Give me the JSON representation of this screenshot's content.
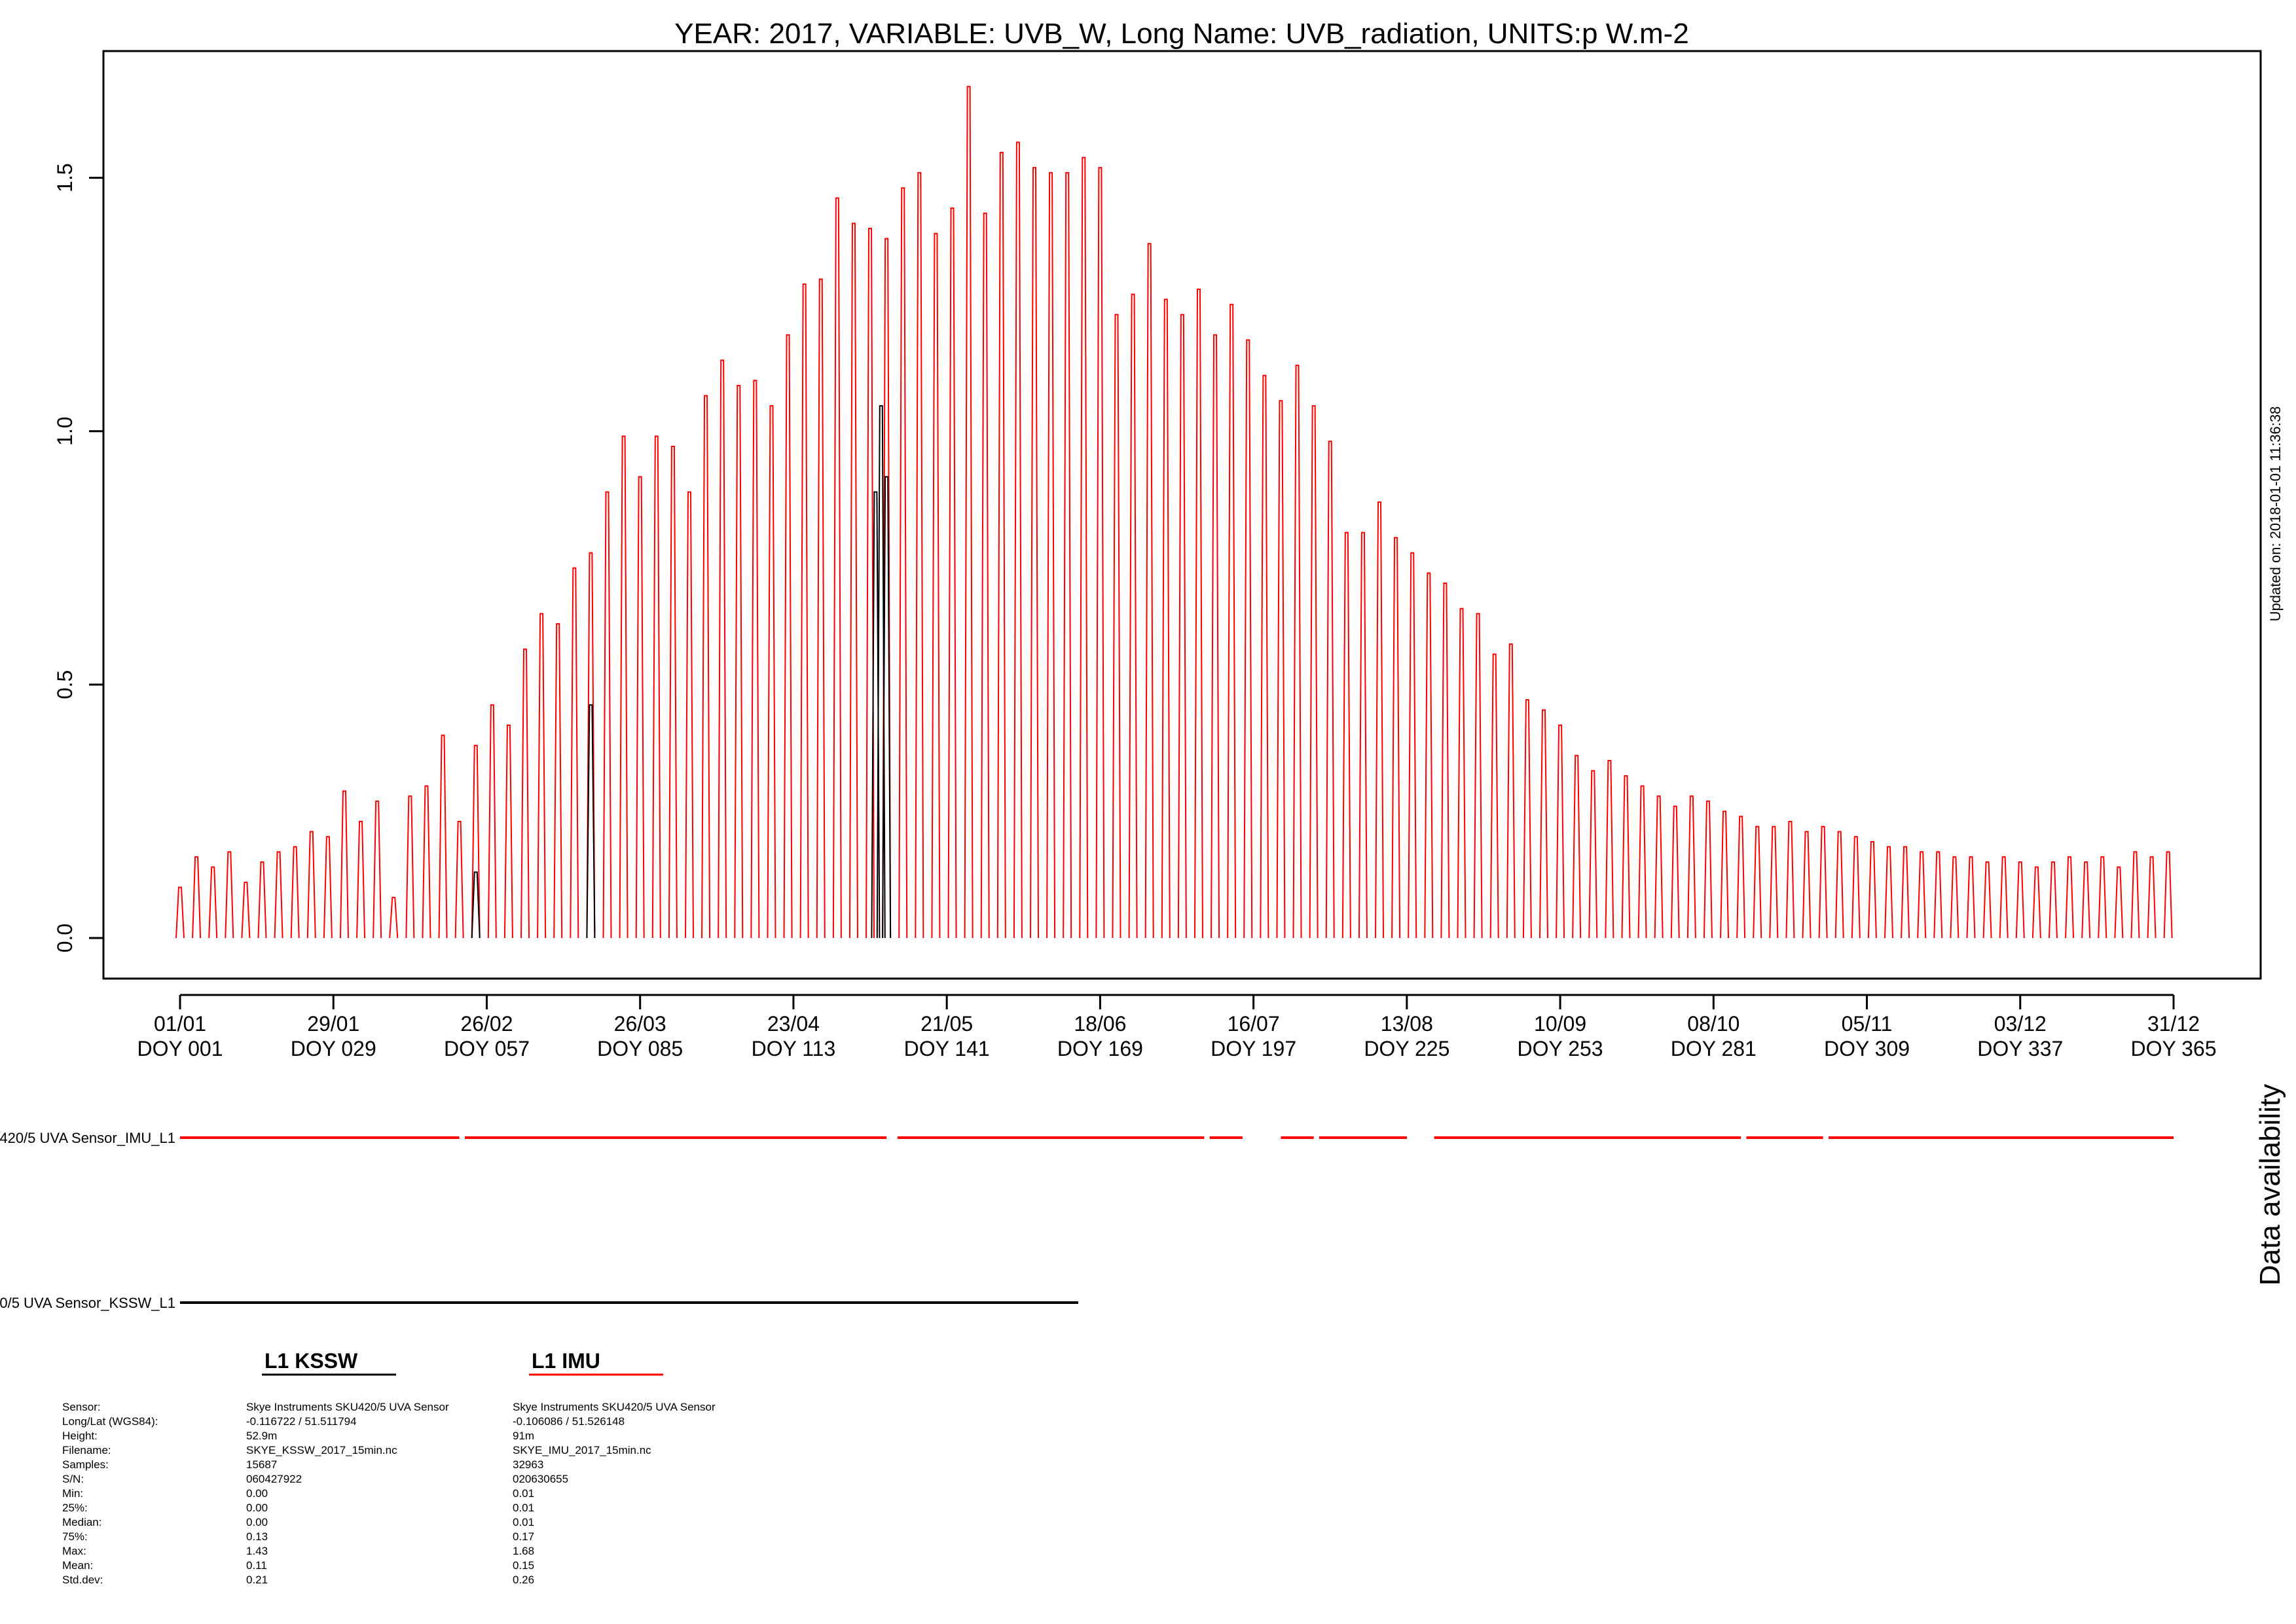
{
  "title": "YEAR: 2017, VARIABLE: UVB_W, Long Name: UVB_radiation, UNITS:p W.m-2",
  "updated": "Updated on: 2018-01-01 11:36:38",
  "availability_title": "Data availability",
  "chart_data": {
    "type": "line",
    "title": "YEAR: 2017, VARIABLE: UVB_W, Long Name: UVB_radiation, UNITS:p W.m-2",
    "xlabel": "",
    "ylabel": "",
    "xlim": [
      0,
      365
    ],
    "ylim": [
      -0.08,
      1.75
    ],
    "yticks": [
      0.0,
      0.5,
      1.0,
      1.5
    ],
    "ytick_labels": [
      "0.0",
      "0.5",
      "1.0",
      "1.5"
    ],
    "x_ticks": [
      {
        "doy": 1,
        "date": "01/01",
        "label": "DOY 001"
      },
      {
        "doy": 29,
        "date": "29/01",
        "label": "DOY 029"
      },
      {
        "doy": 57,
        "date": "26/02",
        "label": "DOY 057"
      },
      {
        "doy": 85,
        "date": "26/03",
        "label": "DOY 085"
      },
      {
        "doy": 113,
        "date": "23/04",
        "label": "DOY 113"
      },
      {
        "doy": 141,
        "date": "21/05",
        "label": "DOY 141"
      },
      {
        "doy": 169,
        "date": "18/06",
        "label": "DOY 169"
      },
      {
        "doy": 197,
        "date": "16/07",
        "label": "DOY 197"
      },
      {
        "doy": 225,
        "date": "13/08",
        "label": "DOY 225"
      },
      {
        "doy": 253,
        "date": "10/09",
        "label": "DOY 253"
      },
      {
        "doy": 281,
        "date": "08/10",
        "label": "DOY 281"
      },
      {
        "doy": 309,
        "date": "05/11",
        "label": "DOY 309"
      },
      {
        "doy": 337,
        "date": "03/12",
        "label": "DOY 337"
      },
      {
        "doy": 365,
        "date": "31/12",
        "label": "DOY 365"
      }
    ],
    "series": [
      {
        "name": "L1 IMU",
        "color": "#ff0000",
        "daily_peak_doy": [
          1,
          4,
          7,
          10,
          13,
          16,
          19,
          22,
          25,
          28,
          31,
          34,
          37,
          40,
          43,
          46,
          49,
          52,
          55,
          58,
          61,
          64,
          67,
          70,
          73,
          76,
          79,
          82,
          85,
          88,
          91,
          94,
          97,
          100,
          103,
          106,
          109,
          112,
          115,
          118,
          121,
          124,
          127,
          130,
          133,
          136,
          139,
          142,
          145,
          148,
          151,
          154,
          157,
          160,
          163,
          166,
          169,
          172,
          175,
          178,
          181,
          184,
          187,
          190,
          193,
          196,
          199,
          202,
          205,
          208,
          211,
          214,
          217,
          220,
          223,
          226,
          229,
          232,
          235,
          238,
          241,
          244,
          247,
          250,
          253,
          256,
          259,
          262,
          265,
          268,
          271,
          274,
          277,
          280,
          283,
          286,
          289,
          292,
          295,
          298,
          301,
          304,
          307,
          310,
          313,
          316,
          319,
          322,
          325,
          328,
          331,
          334,
          337,
          340,
          343,
          346,
          349,
          352,
          355,
          358,
          361,
          364
        ],
        "daily_peak_uvb": [
          0.1,
          0.16,
          0.14,
          0.17,
          0.11,
          0.15,
          0.17,
          0.18,
          0.21,
          0.2,
          0.29,
          0.23,
          0.27,
          0.08,
          0.28,
          0.3,
          0.4,
          0.23,
          0.38,
          0.46,
          0.42,
          0.57,
          0.64,
          0.62,
          0.73,
          0.76,
          0.88,
          0.99,
          0.91,
          0.99,
          0.97,
          0.88,
          1.07,
          1.14,
          1.09,
          1.1,
          1.05,
          1.19,
          1.29,
          1.3,
          1.46,
          1.41,
          1.4,
          1.38,
          1.48,
          1.51,
          1.39,
          1.44,
          1.68,
          1.43,
          1.55,
          1.57,
          1.52,
          1.51,
          1.51,
          1.54,
          1.52,
          1.23,
          1.27,
          1.37,
          1.26,
          1.23,
          1.28,
          1.19,
          1.25,
          1.18,
          1.11,
          1.06,
          1.13,
          1.05,
          0.98,
          0.8,
          0.8,
          0.86,
          0.79,
          0.76,
          0.72,
          0.7,
          0.65,
          0.64,
          0.56,
          0.58,
          0.47,
          0.45,
          0.42,
          0.36,
          0.33,
          0.35,
          0.32,
          0.3,
          0.28,
          0.26,
          0.28,
          0.27,
          0.25,
          0.24,
          0.22,
          0.22,
          0.23,
          0.21,
          0.22,
          0.21,
          0.2,
          0.19,
          0.18,
          0.18,
          0.17,
          0.17,
          0.16,
          0.16,
          0.15,
          0.16,
          0.15,
          0.14,
          0.15,
          0.16,
          0.15,
          0.16,
          0.14,
          0.17,
          0.16,
          0.17
        ]
      },
      {
        "name": "L1 KSSW",
        "color": "#000000",
        "daily_peak_doy": [
          55,
          76,
          128,
          129,
          130
        ],
        "daily_peak_uvb": [
          0.13,
          0.46,
          0.88,
          1.05,
          0.91
        ]
      }
    ],
    "availability": [
      {
        "label": "Skye Instruments SKU420/5 UVA Sensor_IMU_L1",
        "color": "#ff0000",
        "segments": [
          [
            1,
            52
          ],
          [
            53,
            130
          ],
          [
            132,
            188
          ],
          [
            189,
            195
          ],
          [
            202,
            208
          ],
          [
            209,
            225
          ],
          [
            230,
            286
          ],
          [
            287,
            301
          ],
          [
            302,
            365
          ]
        ]
      },
      {
        "label": "Skye Instruments SKU420/5 UVA Sensor_KSSW_L1",
        "color": "#000000",
        "segments": [
          [
            1,
            165
          ]
        ]
      }
    ]
  },
  "legend": {
    "kssw": {
      "title": "L1 KSSW",
      "color": "#000000"
    },
    "imu": {
      "title": "L1 IMU",
      "color": "#ff0000"
    }
  },
  "metadata": {
    "labels": [
      "Sensor:",
      "Long/Lat (WGS84):",
      "Height:",
      "Filename:",
      "Samples:",
      "S/N:",
      "Min:",
      "25%:",
      "Median:",
      "75%:",
      "Max:",
      "Mean:",
      "Std.dev:"
    ],
    "kssw": [
      "Skye Instruments SKU420/5 UVA Sensor",
      "-0.116722 / 51.511794",
      "52.9m",
      "SKYE_KSSW_2017_15min.nc",
      "15687",
      "060427922",
      "0.00",
      "0.00",
      "0.00",
      "0.13",
      "1.43",
      "0.11",
      "0.21"
    ],
    "imu": [
      "Skye Instruments SKU420/5 UVA Sensor",
      "-0.106086 / 51.526148",
      "91m",
      "SKYE_IMU_2017_15min.nc",
      "32963",
      "020630655",
      "0.01",
      "0.01",
      "0.01",
      "0.17",
      "1.68",
      "0.15",
      "0.26"
    ]
  }
}
